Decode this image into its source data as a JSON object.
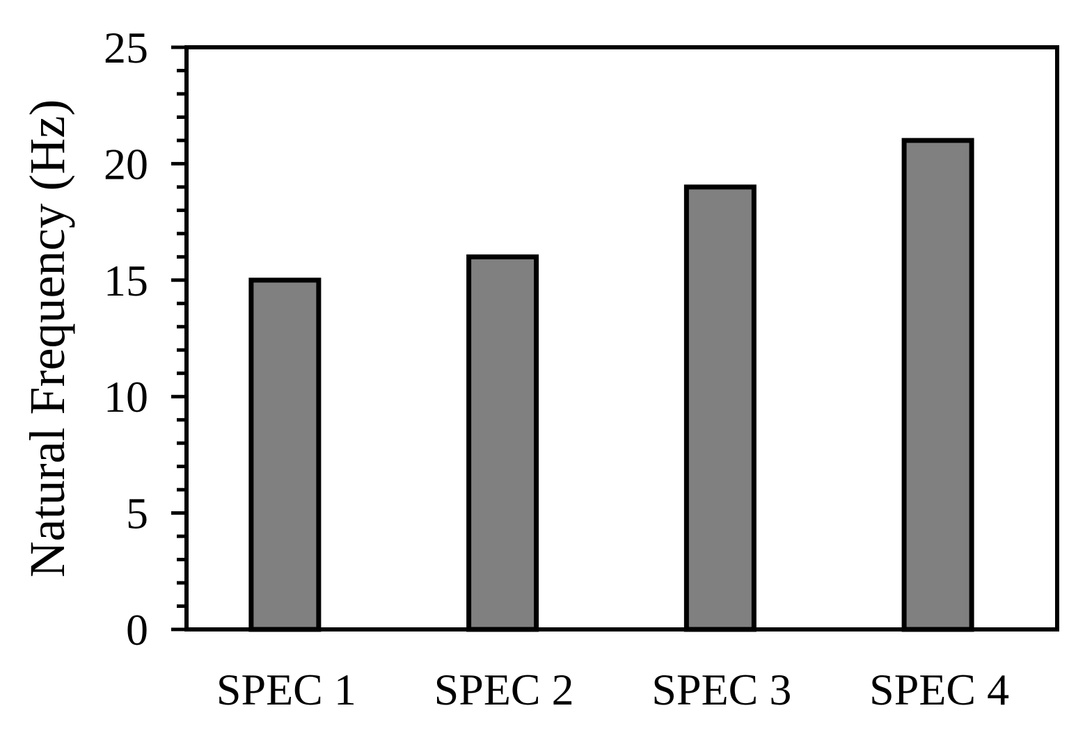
{
  "chart_data": {
    "type": "bar",
    "title": "",
    "xlabel": "",
    "ylabel": "Natural Frequency (Hz)",
    "categories": [
      "SPEC 1",
      "SPEC 2",
      "SPEC 3",
      "SPEC 4"
    ],
    "series": [
      {
        "values": [
          15,
          16,
          19,
          21
        ]
      }
    ],
    "ylim": [
      0,
      25
    ],
    "yticks": [
      0,
      5,
      10,
      15,
      20,
      25
    ],
    "ytick_labels": [
      "0",
      "5",
      "10",
      "15",
      "20",
      "25"
    ],
    "minor_ytick_step": 1,
    "grid": false,
    "legend": "none",
    "colors": {
      "bar_fill": "#808080",
      "bar_stroke": "#000000",
      "axis": "#000000",
      "background": "#ffffff"
    }
  }
}
